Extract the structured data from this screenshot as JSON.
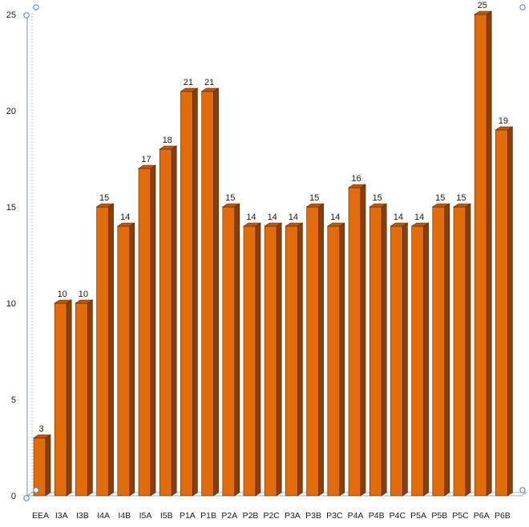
{
  "chart_data": {
    "type": "bar",
    "style": "3d-column",
    "bar_color": "#e36c0a",
    "bar_side_color": "#8a3e05",
    "bar_top_color": "#b85a10",
    "axis_color": "#7f95a8",
    "gridlines": false,
    "legend": "none",
    "ylim": [
      0,
      25
    ],
    "yticks": [
      0,
      5,
      10,
      15,
      20,
      25
    ],
    "categories": [
      "EEA",
      "I3A",
      "I3B",
      "I4A",
      "I4B",
      "I5A",
      "I5B",
      "P1A",
      "P1B",
      "P2A",
      "P2B",
      "P2C",
      "P3A",
      "P3B",
      "P3C",
      "P4A",
      "P4B",
      "P4C",
      "P5A",
      "P5B",
      "P5C",
      "P6A",
      "P6B"
    ],
    "values": [
      3,
      10,
      10,
      15,
      14,
      17,
      18,
      21,
      21,
      15,
      14,
      14,
      14,
      15,
      14,
      16,
      15,
      14,
      14,
      15,
      15,
      25,
      19
    ]
  }
}
